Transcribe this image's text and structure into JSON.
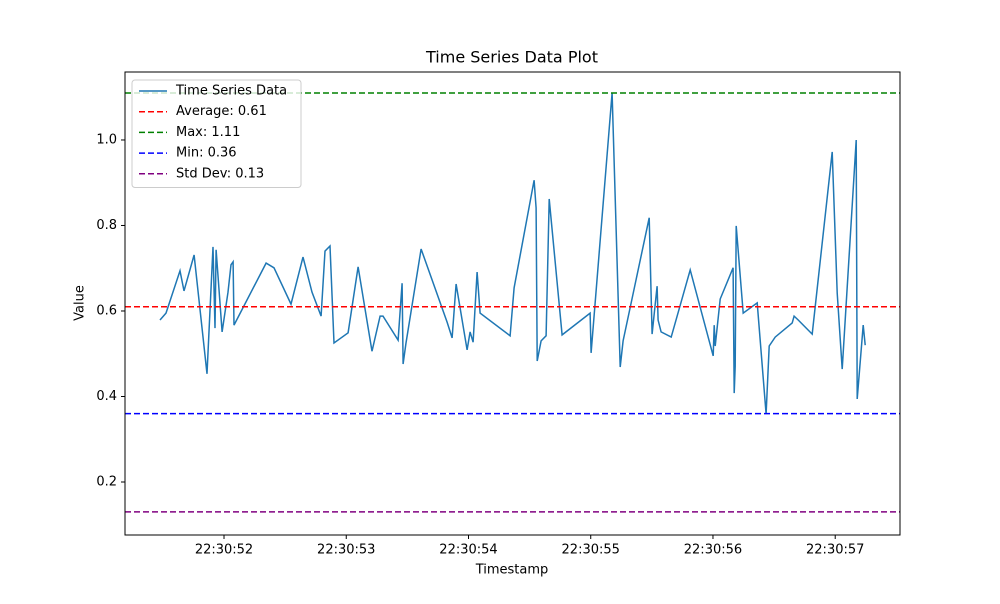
{
  "chart_data": {
    "type": "line",
    "title": "Time Series Data Plot",
    "x_label": "Timestamp",
    "y_label": "Value",
    "x": [
      "22:30:51.476",
      "22:30:51.525",
      "22:30:51.640",
      "22:30:51.673",
      "22:30:51.755",
      "22:30:51.861",
      "22:30:51.910",
      "22:30:51.926",
      "22:30:51.935",
      "22:30:51.984",
      "22:30:52.033",
      "22:30:52.057",
      "22:30:52.074",
      "22:30:52.082",
      "22:30:52.344",
      "22:30:52.409",
      "22:30:52.548",
      "22:30:52.646",
      "22:30:52.720",
      "22:30:52.794",
      "22:30:52.826",
      "22:30:52.867",
      "22:30:52.900",
      "22:30:53.015",
      "22:30:53.097",
      "22:30:53.211",
      "22:30:53.277",
      "22:30:53.301",
      "22:30:53.424",
      "22:30:53.457",
      "22:30:53.465",
      "22:30:53.489",
      "22:30:53.612",
      "22:30:53.825",
      "22:30:53.866",
      "22:30:53.899",
      "22:30:53.989",
      "22:30:54.013",
      "22:30:54.038",
      "22:30:54.070",
      "22:30:54.095",
      "22:30:54.340",
      "22:30:54.373",
      "22:30:54.537",
      "22:30:54.553",
      "22:30:54.562",
      "22:30:54.594",
      "22:30:54.635",
      "22:30:54.660",
      "22:30:54.766",
      "22:30:54.995",
      "22:30:55.003",
      "22:30:55.175",
      "22:30:55.241",
      "22:30:55.265",
      "22:30:55.478",
      "22:30:55.502",
      "22:30:55.543",
      "22:30:55.551",
      "22:30:55.576",
      "22:30:55.658",
      "22:30:55.814",
      "22:30:56.002",
      "22:30:56.010",
      "22:30:56.018",
      "22:30:56.059",
      "22:30:56.165",
      "22:30:56.174",
      "22:30:56.182",
      "22:30:56.190",
      "22:30:56.247",
      "22:30:56.362",
      "22:30:56.435",
      "22:30:56.460",
      "22:30:56.509",
      "22:30:56.648",
      "22:30:56.664",
      "22:30:56.697",
      "22:30:56.812",
      "22:30:56.975",
      "22:30:57.016",
      "22:30:57.057",
      "22:30:57.172",
      "22:30:57.180",
      "22:30:57.229",
      "22:30:57.245"
    ],
    "series": [
      {
        "name": "Time Series Data",
        "color": "#1f77b4",
        "values": [
          0.579,
          0.595,
          0.694,
          0.647,
          0.731,
          0.453,
          0.75,
          0.56,
          0.743,
          0.551,
          0.644,
          0.708,
          0.715,
          0.567,
          0.712,
          0.701,
          0.616,
          0.726,
          0.644,
          0.588,
          0.74,
          0.752,
          0.525,
          0.549,
          0.703,
          0.506,
          0.588,
          0.588,
          0.532,
          0.665,
          0.476,
          0.525,
          0.745,
          0.574,
          0.537,
          0.663,
          0.509,
          0.551,
          0.527,
          0.691,
          0.595,
          0.542,
          0.654,
          0.906,
          0.841,
          0.483,
          0.53,
          0.542,
          0.862,
          0.544,
          0.595,
          0.502,
          1.11,
          0.469,
          0.53,
          0.818,
          0.546,
          0.658,
          0.579,
          0.551,
          0.539,
          0.696,
          0.495,
          0.567,
          0.518,
          0.628,
          0.701,
          0.408,
          0.471,
          0.799,
          0.595,
          0.619,
          0.359,
          0.518,
          0.539,
          0.572,
          0.588,
          0.579,
          0.546,
          0.972,
          0.642,
          0.464,
          1.0,
          0.394,
          0.567,
          0.52
        ]
      }
    ],
    "lines": [
      {
        "name": "Average: 0.61",
        "value": 0.61,
        "color": "#ff0000"
      },
      {
        "name": "Max: 1.11",
        "value": 1.11,
        "color": "#008000"
      },
      {
        "name": "Min: 0.36",
        "value": 0.36,
        "color": "#0000ff"
      },
      {
        "name": "Std Dev: 0.13",
        "value": 0.13,
        "color": "#800080"
      }
    ],
    "xlim": [
      "22:30:51.190",
      "22:30:57.530"
    ],
    "xticks": [
      "22:30:52",
      "22:30:53",
      "22:30:54",
      "22:30:55",
      "22:30:56",
      "22:30:57"
    ],
    "ylim": [
      0.076,
      1.159
    ],
    "yticks": [
      0.2,
      0.4,
      0.6,
      0.8,
      {
        "value": 1,
        "label": "1.0"
      }
    ],
    "legend": "upper left"
  }
}
